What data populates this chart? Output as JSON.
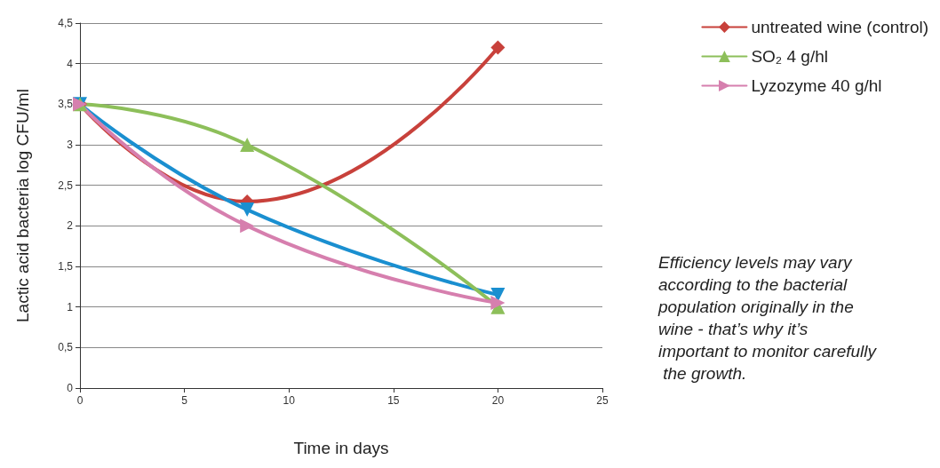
{
  "chart_data": {
    "type": "line",
    "xlabel": "Time in days",
    "ylabel": "Lactic acid bacteria log CFU/ml",
    "xlim": [
      0,
      25
    ],
    "xticks": [
      0,
      5,
      10,
      15,
      20,
      25
    ],
    "ylim": [
      0,
      4.5
    ],
    "yticks": [
      0,
      {
        "value": 0.5,
        "label": "0,5"
      },
      1,
      {
        "value": 1.5,
        "label": "1,5"
      },
      2,
      {
        "value": 2.5,
        "label": "2,5"
      },
      3,
      {
        "value": 3.5,
        "label": "3,5"
      },
      4,
      {
        "value": 4.5,
        "label": "4,5"
      }
    ],
    "x": [
      0,
      8,
      20
    ],
    "series": [
      {
        "name": "untreated wine (control)",
        "color": "#c8413b",
        "marker": "diamond",
        "values": [
          3.5,
          2.3,
          4.2
        ]
      },
      {
        "color": "#1a8fd0",
        "marker": "triangle-down",
        "values": [
          3.5,
          2.2,
          1.15
        ]
      },
      {
        "name": "SO₂ 4 g/hl",
        "color": "#8dbf5a",
        "marker": "triangle",
        "values": [
          3.5,
          3.0,
          1.0
        ]
      },
      {
        "name": "Lyzozyme 40 g/hl",
        "color": "#d67fae",
        "marker": "triangle-right",
        "values": [
          3.5,
          2.0,
          1.05
        ]
      }
    ],
    "grid": "y",
    "legend": "top right",
    "line_style": "solid",
    "annotations": [
      "Efficiency levels may vary according to the bacterial population originally in the wine - that’s why it’s important to monitor carefully the growth."
    ]
  }
}
